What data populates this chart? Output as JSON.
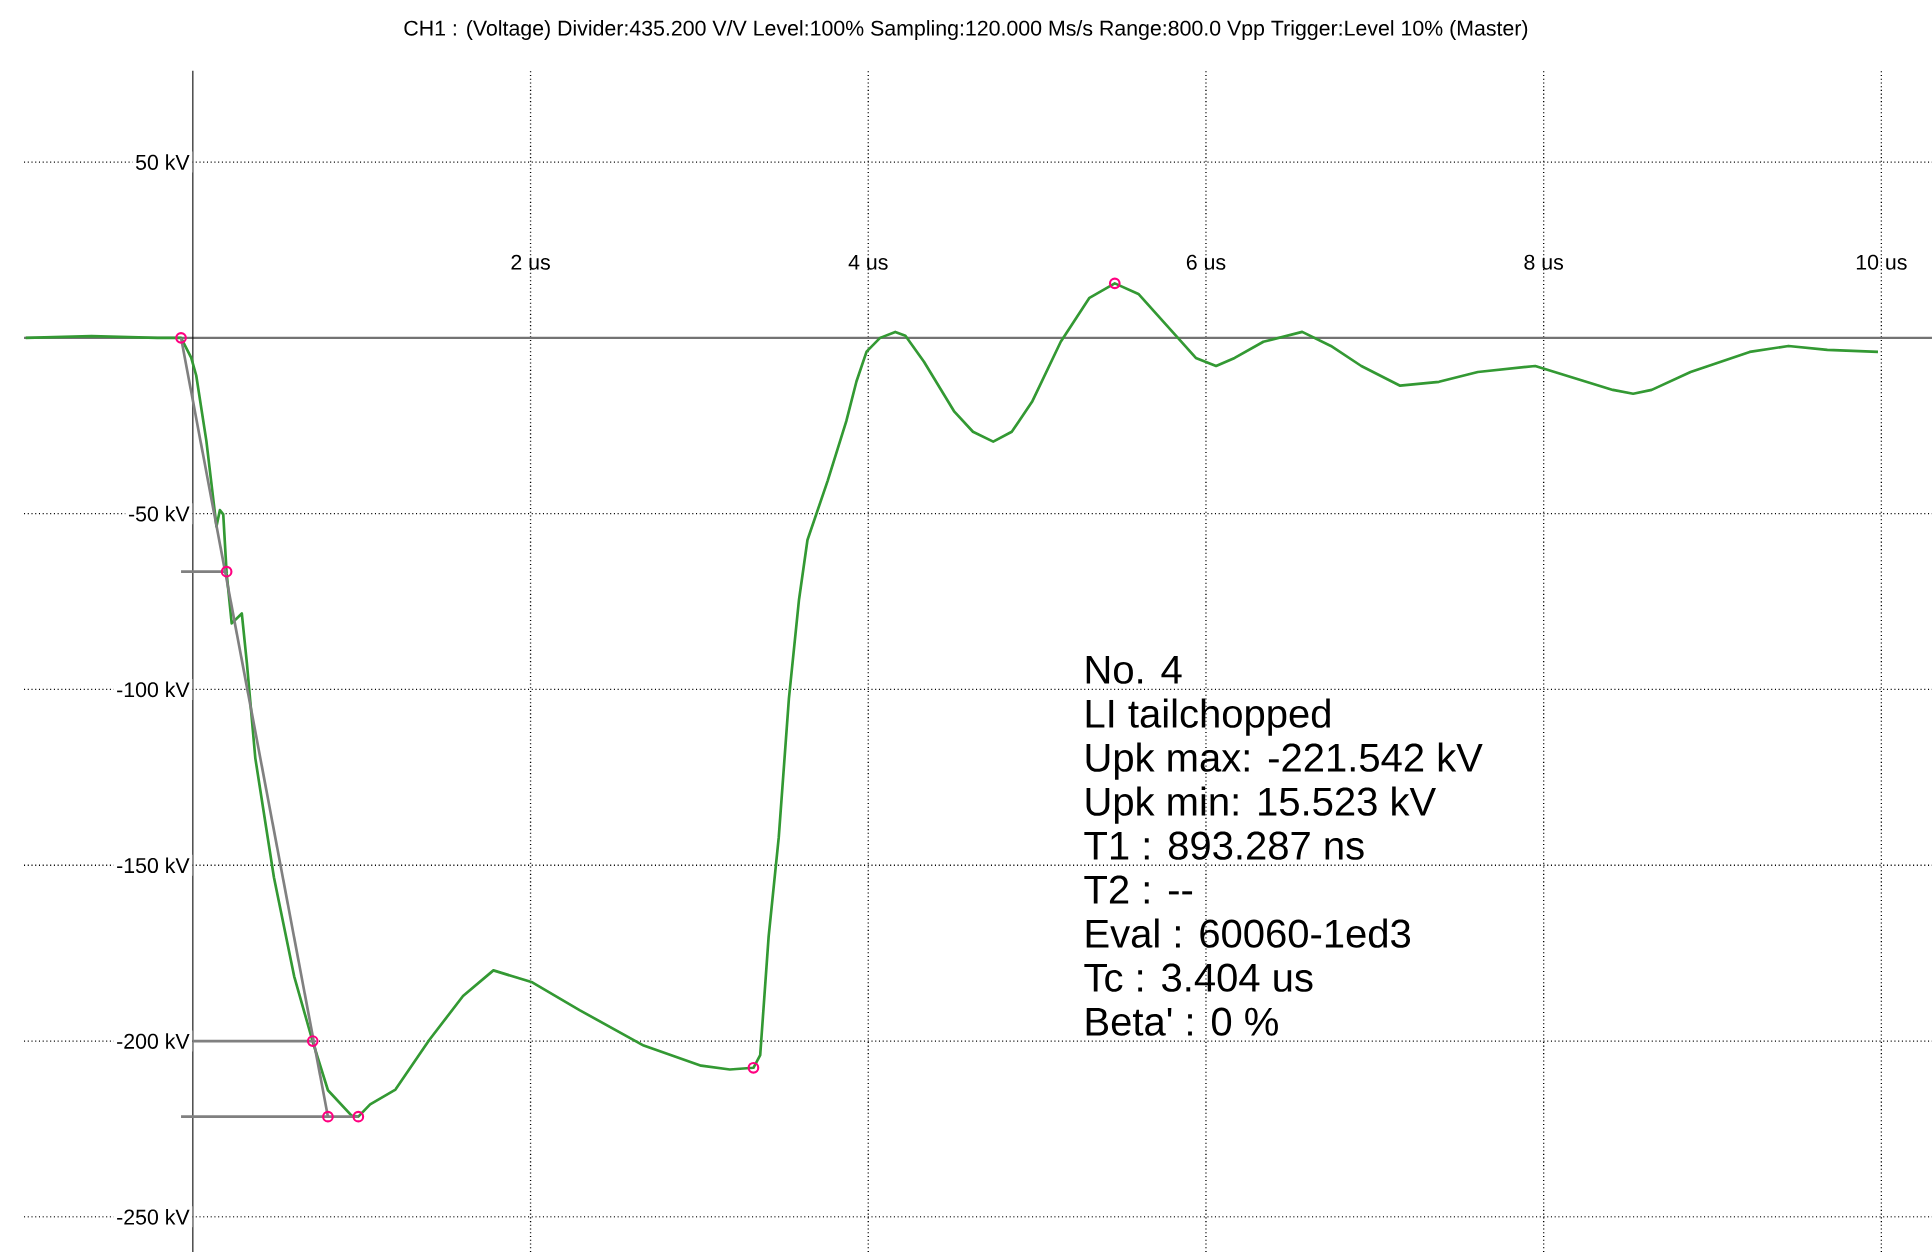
{
  "chart_data": {
    "type": "line",
    "title": "CH1 : (Voltage)  Divider:435.200 V/V  Level:100%  Sampling:120.000 Ms/s  Range:800.0 Vpp  Trigger:Level 10%  (Master)",
    "xlim": [
      -1,
      10.3
    ],
    "ylim": [
      -260,
      76
    ],
    "xticks": [
      {
        "value": 2,
        "label": "2 us"
      },
      {
        "value": 4,
        "label": "4 us"
      },
      {
        "value": 6,
        "label": "6 us"
      },
      {
        "value": 8,
        "label": "8 us"
      },
      {
        "value": 10,
        "label": "10 us"
      }
    ],
    "yticks": [
      {
        "value": 50,
        "label": "50 kV"
      },
      {
        "value": -50,
        "label": "-50 kV"
      },
      {
        "value": -100,
        "label": "-100 kV"
      },
      {
        "value": -150,
        "label": "-150 kV"
      },
      {
        "value": -200,
        "label": "-200 kV"
      },
      {
        "value": -250,
        "label": "-250 kV"
      }
    ],
    "grid": true,
    "series": [
      {
        "color": "#339933",
        "x": [
          -0.99,
          -0.6,
          -0.21,
          -0.07,
          -0.01,
          0.02,
          0.08,
          0.14,
          0.16,
          0.18,
          0.2,
          0.23,
          0.29,
          0.32,
          0.37,
          0.48,
          0.6,
          0.71,
          0.8,
          0.94,
          0.98,
          1.05,
          1.2,
          1.4,
          1.6,
          1.78,
          2.01,
          2.29,
          2.67,
          3.01,
          3.18,
          3.32,
          3.36,
          3.41,
          3.47,
          3.53,
          3.59,
          3.64,
          3.76,
          3.87,
          3.93,
          3.99,
          4.07,
          4.16,
          4.22,
          4.33,
          4.51,
          4.62,
          4.74,
          4.85,
          4.97,
          5.14,
          5.31,
          5.46,
          5.6,
          5.77,
          5.94,
          6.06,
          6.17,
          6.34,
          6.57,
          6.74,
          6.92,
          7.15,
          7.38,
          7.61,
          7.95,
          8.18,
          8.41,
          8.53,
          8.64,
          8.87,
          9.22,
          9.45,
          9.68,
          9.98
        ],
        "values": [
          0,
          0.5,
          0,
          0,
          -5.6,
          -10.7,
          -29.3,
          -53.6,
          -49,
          -50.2,
          -67,
          -81.2,
          -78.4,
          -92.5,
          -119.6,
          -153.4,
          -181.6,
          -200.2,
          -214,
          -221.2,
          -221.5,
          -218,
          -213.8,
          -199.7,
          -187.2,
          -179.9,
          -183.3,
          -191.2,
          -201.3,
          -207,
          -208.1,
          -207.6,
          -204,
          -170.3,
          -142,
          -102.6,
          -74.4,
          -57.5,
          -40.6,
          -23.7,
          -12.4,
          -3.9,
          0,
          1.7,
          0.6,
          -6.8,
          -21,
          -26.7,
          -29.5,
          -26.7,
          -18.2,
          -1.1,
          11.4,
          15.5,
          12.5,
          3.4,
          -5.7,
          -8,
          -5.7,
          -1.1,
          1.7,
          -2.3,
          -8,
          -13.6,
          -12.5,
          -9.7,
          -8,
          -11.4,
          -14.8,
          -15.9,
          -14.8,
          -9.7,
          -4,
          -2.3,
          -3.4,
          -4
        ]
      },
      {
        "type": "line",
        "color": "#808080",
        "x": [
          -0.07,
          0.8
        ],
        "values": [
          0,
          -221.5
        ]
      },
      {
        "type": "line",
        "color": "#808080",
        "x": [
          -0.07,
          0.2
        ],
        "values": [
          -66.5,
          -66.5
        ]
      },
      {
        "type": "line",
        "color": "#808080",
        "x": [
          0,
          0.71
        ],
        "values": [
          -200,
          -200
        ]
      },
      {
        "type": "line",
        "color": "#808080",
        "x": [
          -0.07,
          0.98
        ],
        "values": [
          -221.5,
          -221.5
        ]
      },
      {
        "type": "scatter",
        "marker": "circle",
        "color": "#ff0080",
        "x": [
          -0.07,
          0.2,
          0.71,
          0.8,
          0.98,
          3.32,
          5.46
        ],
        "values": [
          0,
          -66.5,
          -200,
          -221.5,
          -221.5,
          -207.6,
          15.5
        ]
      }
    ],
    "annotations": [
      "No. 4",
      "LI tailchopped",
      "Upk max: -221.542 kV",
      "Upk min: 15.523 kV",
      "T1 : 893.287 ns",
      "T2 : --",
      "Eval : 60060-1ed3",
      "Tc : 3.404 us",
      "Beta' : 0 %"
    ]
  }
}
